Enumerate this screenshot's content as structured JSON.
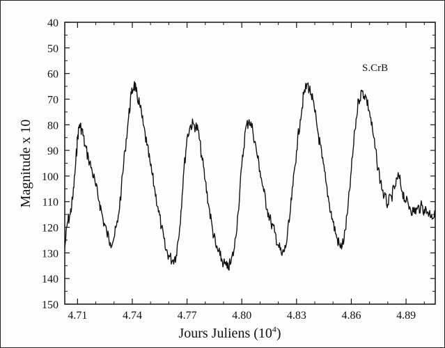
{
  "chart_data": {
    "type": "line",
    "title": "",
    "annotation": "S.CrB",
    "xlabel": "Jours Juliens (10",
    "xlabel_sup": "4",
    "xlabel_close": ")",
    "ylabel": "Magnitude x 10",
    "xlim": [
      4.703,
      4.906
    ],
    "ylim": [
      40,
      150
    ],
    "y_inverted": true,
    "x_ticks": [
      4.71,
      4.74,
      4.77,
      4.8,
      4.83,
      4.86,
      4.89
    ],
    "x_tick_labels": [
      "4.71",
      "4.74",
      "4.77",
      "4.80",
      "4.83",
      "4.86",
      "4.89"
    ],
    "y_ticks": [
      40,
      50,
      60,
      70,
      80,
      90,
      100,
      110,
      120,
      130,
      140,
      150
    ],
    "y_tick_labels": [
      "40",
      "50",
      "60",
      "70",
      "80",
      "90",
      "100",
      "110",
      "120",
      "130",
      "140",
      "150"
    ],
    "grid": false,
    "series": [
      {
        "color": "#111111",
        "x": [
          4.703,
          4.7045,
          4.706,
          4.7075,
          4.709,
          4.71,
          4.711,
          4.7125,
          4.714,
          4.716,
          4.718,
          4.72,
          4.722,
          4.724,
          4.726,
          4.728,
          4.73,
          4.732,
          4.734,
          4.736,
          4.738,
          4.7395,
          4.741,
          4.742,
          4.744,
          4.746,
          4.748,
          4.75,
          4.752,
          4.754,
          4.756,
          4.758,
          4.76,
          4.762,
          4.764,
          4.766,
          4.768,
          4.77,
          4.772,
          4.774,
          4.776,
          4.778,
          4.78,
          4.782,
          4.784,
          4.786,
          4.788,
          4.79,
          4.792,
          4.794,
          4.796,
          4.798,
          4.8,
          4.802,
          4.804,
          4.806,
          4.808,
          4.81,
          4.812,
          4.814,
          4.816,
          4.818,
          4.82,
          4.822,
          4.824,
          4.826,
          4.828,
          4.83,
          4.832,
          4.834,
          4.836,
          4.838,
          4.84,
          4.842,
          4.844,
          4.846,
          4.848,
          4.85,
          4.852,
          4.854,
          4.856,
          4.858,
          4.86,
          4.862,
          4.864,
          4.866,
          4.868,
          4.87,
          4.872,
          4.874,
          4.876,
          4.878,
          4.88,
          4.882,
          4.884,
          4.886,
          4.888,
          4.89,
          4.892,
          4.894,
          4.896,
          4.898,
          4.9,
          4.902,
          4.904,
          4.906
        ],
        "y": [
          128,
          118,
          115,
          108,
          95,
          85,
          80,
          82,
          88,
          93,
          98,
          104,
          110,
          117,
          122,
          126,
          124,
          118,
          105,
          90,
          77,
          68,
          64,
          67,
          72,
          80,
          88,
          96,
          104,
          112,
          120,
          128,
          131,
          133,
          131,
          120,
          100,
          85,
          80,
          80,
          82,
          92,
          102,
          112,
          121,
          128,
          131,
          134,
          136,
          134,
          128,
          114,
          96,
          82,
          78,
          82,
          90,
          98,
          106,
          113,
          118,
          122,
          127,
          131,
          128,
          118,
          104,
          90,
          78,
          68,
          64,
          68,
          75,
          84,
          93,
          102,
          111,
          118,
          124,
          128,
          125,
          114,
          98,
          82,
          70,
          67,
          69,
          75,
          84,
          94,
          102,
          108,
          111,
          108,
          104,
          100,
          106,
          110,
          112,
          114,
          113,
          112,
          113,
          114,
          115,
          116
        ]
      }
    ]
  }
}
